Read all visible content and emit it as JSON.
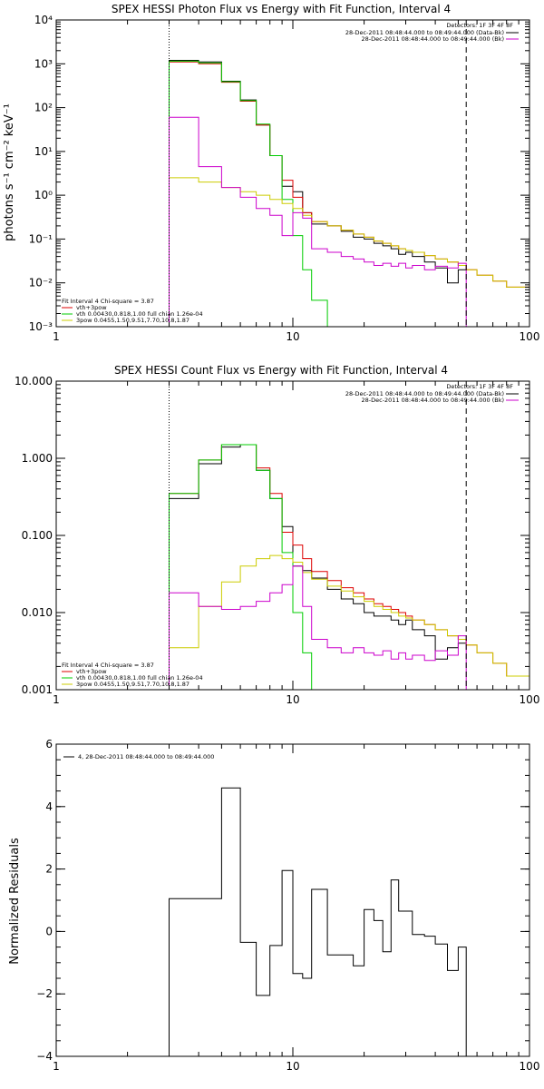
{
  "colors": {
    "black": "#000000",
    "red": "#dd0000",
    "green": "#00cc00",
    "yellow": "#cccc00",
    "magenta": "#cc00cc"
  },
  "chart_data": [
    {
      "type": "line",
      "title": "SPEX HESSI Photon Flux vs Energy with Fit Function, Interval 4",
      "xlabel": "",
      "ylabel": "photons s⁻¹ cm⁻² keV⁻¹",
      "xscale": "log",
      "yscale": "log",
      "xlim": [
        1,
        100
      ],
      "ylim": [
        0.001,
        10000
      ],
      "x_ticks": [
        1,
        10,
        100
      ],
      "x_tick_labels": [
        "1",
        "10",
        "100"
      ],
      "y_ticks": [
        0.001,
        0.01,
        0.1,
        1,
        10,
        100,
        1000,
        10000
      ],
      "y_tick_labels": [
        "10⁻³",
        "10⁻²",
        "10⁻¹",
        "10⁰",
        "10¹",
        "10²",
        "10³",
        "10⁴"
      ],
      "vlines": [
        {
          "x": 3,
          "style": "dotted"
        },
        {
          "x": 54,
          "style": "dashed"
        }
      ],
      "legend_top": {
        "placement": "top-right",
        "header": "Detectors: 1F 3F 4F 8F",
        "entries": [
          {
            "label": "28-Dec-2011 08:48:44.000 to 08:49:44.000 (Data-Bk)",
            "color": "#000000"
          },
          {
            "label": "28-Dec-2011 08:48:44.000 to 08:49:44.000 (Bk)",
            "color": "#cc00cc"
          }
        ]
      },
      "legend_bottom": {
        "placement": "bottom-left",
        "header": "Fit Interval 4   Chi-square = 3.87",
        "entries": [
          {
            "label": "vth+3pow",
            "color": "#dd0000"
          },
          {
            "label": "vth 0.00430,0.818,1.00   full chian 1.26e-04",
            "color": "#00cc00"
          },
          {
            "label": "3pow 0.0455,1.50,9.51,7.70,10.8,1.87",
            "color": "#cccc00"
          }
        ]
      },
      "series": [
        {
          "name": "Data-Bk",
          "color": "#000000",
          "edges": [
            3,
            4,
            5,
            6,
            7,
            8,
            9,
            10,
            11,
            12,
            14,
            16,
            18,
            20,
            22,
            24,
            26,
            28,
            30,
            32,
            36,
            40,
            45,
            50,
            54
          ],
          "values": [
            1200,
            1100,
            400,
            150,
            40,
            8,
            1.6,
            1.2,
            0.4,
            0.22,
            0.2,
            0.15,
            0.11,
            0.1,
            0.08,
            0.07,
            0.06,
            0.045,
            0.05,
            0.04,
            0.03,
            0.022,
            0.01,
            0.02
          ],
          "start_value": 0.001
        },
        {
          "name": "vth+3pow",
          "color": "#dd0000",
          "edges": [
            3,
            4,
            5,
            6,
            7,
            8,
            9,
            10,
            11,
            12,
            14,
            16,
            18,
            20,
            22,
            24,
            26,
            28,
            30,
            32,
            36,
            40,
            45,
            50,
            54,
            60,
            70,
            80,
            100
          ],
          "values": [
            1100,
            1000,
            380,
            140,
            40,
            8,
            2.2,
            0.9,
            0.4,
            0.25,
            0.2,
            0.16,
            0.13,
            0.11,
            0.09,
            0.08,
            0.07,
            0.06,
            0.055,
            0.05,
            0.042,
            0.035,
            0.03,
            0.025,
            0.02,
            0.015,
            0.011,
            0.008
          ]
        },
        {
          "name": "vth",
          "color": "#00cc00",
          "edges": [
            3,
            4,
            5,
            6,
            7,
            8,
            9,
            10,
            11,
            12,
            14,
            16
          ],
          "values": [
            1150,
            1050,
            390,
            145,
            42,
            8,
            0.8,
            0.12,
            0.02,
            0.004,
            0.0008
          ],
          "start_value": 0.0005
        },
        {
          "name": "3pow",
          "color": "#cccc00",
          "edges": [
            3,
            4,
            5,
            6,
            7,
            8,
            9,
            10,
            11,
            12,
            14,
            16,
            18,
            20,
            22,
            24,
            26,
            28,
            30,
            32,
            36,
            40,
            45,
            50,
            54,
            60,
            70,
            80,
            100
          ],
          "values": [
            2.5,
            2,
            1.5,
            1.2,
            1,
            0.8,
            0.65,
            0.5,
            0.35,
            0.25,
            0.2,
            0.16,
            0.13,
            0.11,
            0.09,
            0.08,
            0.07,
            0.06,
            0.055,
            0.05,
            0.042,
            0.035,
            0.03,
            0.025,
            0.02,
            0.015,
            0.011,
            0.008
          ],
          "start_value": 0.0005
        },
        {
          "name": "Bk",
          "color": "#cc00cc",
          "edges": [
            3,
            4,
            5,
            6,
            7,
            8,
            9,
            10,
            11,
            12,
            14,
            16,
            18,
            20,
            22,
            24,
            26,
            28,
            30,
            32,
            36,
            40,
            45,
            50,
            54
          ],
          "values": [
            60,
            4.5,
            1.5,
            0.9,
            0.5,
            0.35,
            0.12,
            0.4,
            0.3,
            0.06,
            0.05,
            0.04,
            0.035,
            0.03,
            0.025,
            0.028,
            0.024,
            0.028,
            0.022,
            0.025,
            0.02,
            0.024,
            0.022,
            0.028
          ],
          "start_value": 0.0005,
          "end_value": 0.0005
        }
      ]
    },
    {
      "type": "line",
      "title": "SPEX HESSI Count Flux vs Energy with Fit Function, Interval 4",
      "xlabel": "",
      "ylabel": "",
      "xscale": "log",
      "yscale": "log",
      "xlim": [
        1,
        100
      ],
      "ylim": [
        0.001,
        10
      ],
      "x_ticks": [
        1,
        10,
        100
      ],
      "x_tick_labels": [
        "1",
        "10",
        "100"
      ],
      "y_ticks": [
        0.001,
        0.01,
        0.1,
        1,
        10
      ],
      "y_tick_labels": [
        "0.001",
        "0.010",
        "0.100",
        "1.000",
        "10.000"
      ],
      "vlines": [
        {
          "x": 3,
          "style": "dotted"
        },
        {
          "x": 54,
          "style": "dashed"
        }
      ],
      "legend_top": {
        "placement": "top-right",
        "header": "Detectors: 1F 3F 4F 8F",
        "entries": [
          {
            "label": "28-Dec-2011 08:48:44.000 to 08:49:44.000 (Data-Bk)",
            "color": "#000000"
          },
          {
            "label": "28-Dec-2011 08:48:44.000 to 08:49:44.000 (Bk)",
            "color": "#cc00cc"
          }
        ]
      },
      "legend_bottom": {
        "placement": "bottom-left",
        "header": "Fit Interval 4   Chi-square = 3.87",
        "entries": [
          {
            "label": "vth+3pow",
            "color": "#dd0000"
          },
          {
            "label": "vth 0.00430,0.818,1.00   full chian 1.26e-04",
            "color": "#00cc00"
          },
          {
            "label": "3pow 0.0455,1.50,9.51,7.70,10.8,1.87",
            "color": "#cccc00"
          }
        ]
      },
      "series": [
        {
          "name": "Data-Bk",
          "color": "#000000",
          "edges": [
            3,
            4,
            5,
            6,
            7,
            8,
            9,
            10,
            11,
            12,
            14,
            16,
            18,
            20,
            22,
            24,
            26,
            28,
            30,
            32,
            36,
            40,
            45,
            50,
            54
          ],
          "values": [
            0.3,
            0.85,
            1.4,
            1.5,
            0.7,
            0.3,
            0.13,
            0.04,
            0.035,
            0.028,
            0.02,
            0.015,
            0.013,
            0.01,
            0.009,
            0.009,
            0.008,
            0.007,
            0.008,
            0.006,
            0.005,
            0.0025,
            0.0035,
            0.004
          ],
          "start_value": 0.001
        },
        {
          "name": "vth+3pow",
          "color": "#dd0000",
          "edges": [
            3,
            4,
            5,
            6,
            7,
            8,
            9,
            10,
            11,
            12,
            14,
            16,
            18,
            20,
            22,
            24,
            26,
            28,
            30,
            32,
            36,
            40,
            45,
            50,
            54,
            60,
            70,
            80,
            100
          ],
          "values": [
            0.35,
            0.95,
            1.5,
            1.5,
            0.75,
            0.35,
            0.11,
            0.075,
            0.05,
            0.034,
            0.026,
            0.021,
            0.018,
            0.015,
            0.013,
            0.012,
            0.011,
            0.01,
            0.009,
            0.008,
            0.007,
            0.006,
            0.005,
            0.0045,
            0.0038,
            0.003,
            0.0022,
            0.0015
          ]
        },
        {
          "name": "vth",
          "color": "#00cc00",
          "edges": [
            3,
            4,
            5,
            6,
            7,
            8,
            9,
            10,
            11,
            12,
            14
          ],
          "values": [
            0.35,
            0.95,
            1.5,
            1.5,
            0.7,
            0.3,
            0.06,
            0.01,
            0.003,
            0.0008
          ],
          "start_value": 0.0005
        },
        {
          "name": "3pow",
          "color": "#cccc00",
          "edges": [
            3,
            4,
            5,
            6,
            7,
            8,
            9,
            10,
            11,
            12,
            14,
            16,
            18,
            20,
            22,
            24,
            26,
            28,
            30,
            32,
            36,
            40,
            45,
            50,
            54,
            60,
            70,
            80,
            100
          ],
          "values": [
            0.0035,
            0.012,
            0.025,
            0.04,
            0.05,
            0.055,
            0.05,
            0.045,
            0.033,
            0.027,
            0.022,
            0.019,
            0.016,
            0.014,
            0.012,
            0.011,
            0.01,
            0.009,
            0.0085,
            0.008,
            0.007,
            0.006,
            0.005,
            0.0045,
            0.0038,
            0.003,
            0.0022,
            0.0015
          ],
          "start_value": 0.0005
        },
        {
          "name": "Bk",
          "color": "#cc00cc",
          "edges": [
            3,
            4,
            5,
            6,
            7,
            8,
            9,
            10,
            11,
            12,
            14,
            16,
            18,
            20,
            22,
            24,
            26,
            28,
            30,
            32,
            36,
            40,
            45,
            50,
            54
          ],
          "values": [
            0.018,
            0.012,
            0.011,
            0.012,
            0.014,
            0.018,
            0.023,
            0.04,
            0.012,
            0.0045,
            0.0035,
            0.003,
            0.0035,
            0.003,
            0.0028,
            0.0032,
            0.0025,
            0.003,
            0.0025,
            0.0028,
            0.0024,
            0.0032,
            0.0028,
            0.005
          ],
          "start_value": 0.0005,
          "end_value": 0.0005
        }
      ]
    },
    {
      "type": "line",
      "title": "",
      "xlabel": "",
      "ylabel": "Normalized Residuals",
      "xscale": "log",
      "yscale": "linear",
      "xlim": [
        1,
        100
      ],
      "ylim": [
        -4,
        6
      ],
      "x_ticks": [
        1,
        10,
        100
      ],
      "x_tick_labels": [
        "1",
        "10",
        "100"
      ],
      "y_ticks": [
        -4,
        -2,
        0,
        2,
        4,
        6
      ],
      "y_tick_labels": [
        "−4",
        "−2",
        "0",
        "2",
        "4",
        "6"
      ],
      "vlines": [],
      "legend_top": {
        "placement": "top-left",
        "header": "",
        "entries": [
          {
            "label": "4, 28-Dec-2011 08:48:44.000 to 08:49:44.000",
            "color": "#000000"
          }
        ]
      },
      "series": [
        {
          "name": "",
          "color": "#000000",
          "edges": [
            3,
            4,
            5,
            6,
            7,
            8,
            9,
            10,
            11,
            12,
            14,
            16,
            18,
            20,
            22,
            24,
            26,
            28,
            30,
            32,
            36,
            40,
            45,
            50,
            54
          ],
          "values": [
            1.05,
            1.05,
            4.6,
            -0.35,
            -2.05,
            -0.45,
            1.95,
            -1.35,
            -1.5,
            1.35,
            -0.75,
            -0.75,
            -1.1,
            0.7,
            0.35,
            -0.65,
            1.65,
            0.65,
            0.65,
            -0.1,
            -0.15,
            -0.4,
            -1.25,
            -0.5
          ],
          "start_value": -4.05,
          "end_value": -4.05
        }
      ]
    }
  ]
}
